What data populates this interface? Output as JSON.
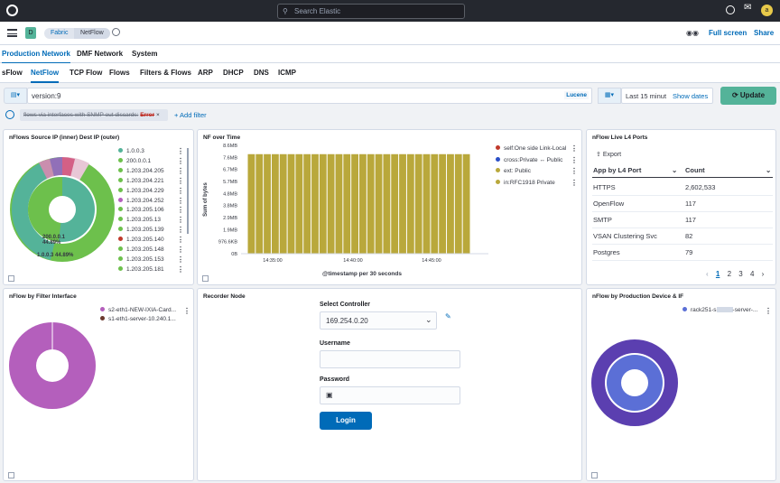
{
  "header": {
    "search_placeholder": "Search Elastic",
    "avatar_letter": "a"
  },
  "nav": {
    "space_letter": "D",
    "breadcrumbs": [
      "Fabric",
      "NetFlow"
    ],
    "full_screen": "Full screen",
    "share": "Share"
  },
  "tabs_primary": [
    "Production Network",
    "DMF Network",
    "System"
  ],
  "tabs_secondary": [
    "sFlow",
    "NetFlow",
    "TCP Flow",
    "Flows",
    "Filters & Flows",
    "ARP",
    "DHCP",
    "DNS",
    "ICMP"
  ],
  "query": {
    "value": "version:9",
    "language": "Lucene",
    "time": "Last 15 minut",
    "show_dates": "Show dates",
    "update": "Update"
  },
  "filter_pill": {
    "text": "flows via interfaces with SNMP out discards:",
    "error": "Error",
    "add": "+ Add filter"
  },
  "panel1": {
    "title": "nFlows Source IP (inner) Dest IP (outer)",
    "legend": [
      "1.0.0.3",
      "200.0.0.1",
      "1.203.204.205",
      "1.203.204.221",
      "1.203.204.229",
      "1.203.204.252",
      "1.203.205.106",
      "1.203.205.13",
      "1.203.205.139",
      "1.203.205.140",
      "1.203.205.148",
      "1.203.205.153",
      "1.203.205.181"
    ],
    "legend_colors": [
      "#54b399",
      "#6dc04c",
      "#6dc04c",
      "#6dc04c",
      "#6dc04c",
      "#b45fbc",
      "#6dc04c",
      "#6dc04c",
      "#6dc04c",
      "#c0392b",
      "#6dc04c",
      "#6dc04c",
      "#6dc04c"
    ],
    "label_inner1": "200.0.0.1",
    "label_inner1_pct": "44.89%",
    "label_inner2": "1.0.0.3",
    "label_inner2_pct": "44.89%"
  },
  "panel2": {
    "title": "NF over Time",
    "chart_data": {
      "type": "bar",
      "title": "NF over Time",
      "ylabel": "Sum of bytes",
      "xlabel": "@timestamp per 30 seconds",
      "yticks": [
        "8.6MB",
        "7.6MB",
        "6.7MB",
        "5.7MB",
        "4.8MB",
        "3.8MB",
        "2.9MB",
        "1.9MB",
        "976.6KB",
        "0B"
      ],
      "xticks": [
        "14:35:00",
        "14:40:00",
        "14:45:00"
      ],
      "series": [
        {
          "name": "ext: Public",
          "color": "#b9a83b",
          "values": [
            7.9,
            7.9,
            7.9,
            7.9,
            7.9,
            7.9,
            7.9,
            7.9,
            7.9,
            7.9,
            7.9,
            7.9,
            7.9,
            7.9,
            7.9,
            7.9,
            7.9,
            7.9,
            7.9,
            7.9,
            7.9,
            7.9,
            7.9,
            7.9,
            7.9,
            7.9,
            7.9,
            7.9
          ]
        }
      ],
      "unit": "MB",
      "ylim": [
        0,
        8.6
      ]
    },
    "legend": [
      "self:One side Link-Local",
      "cross:Private ↔ Public",
      "ext: Public",
      "in:RFC1918 Private"
    ],
    "legend_colors": [
      "#c0392b",
      "#2a4fc7",
      "#b9a83b",
      "#b9a83b"
    ]
  },
  "panel3": {
    "title": "nFlow Live L4 Ports",
    "export": "Export",
    "col1": "App by L4 Port",
    "col2": "Count",
    "rows": [
      {
        "app": "HTTPS",
        "count": "2,602,533"
      },
      {
        "app": "OpenFlow",
        "count": "117"
      },
      {
        "app": "SMTP",
        "count": "117"
      },
      {
        "app": "VSAN Clustering Svc",
        "count": "82"
      },
      {
        "app": "Postgres",
        "count": "79"
      }
    ],
    "pages": [
      "1",
      "2",
      "3",
      "4"
    ]
  },
  "panel4": {
    "title": "nFlow by Filter Interface",
    "legend": [
      "s2-eth1-NEW-IXIA-Card...",
      "s1-eth1-server-10.240.1..."
    ],
    "legend_colors": [
      "#b45fbc",
      "#6b3a2e"
    ]
  },
  "panel5": {
    "title": "Recorder Node",
    "controller_label": "Select Controller",
    "controller_value": "169.254.0.20",
    "username_label": "Username",
    "password_label": "Password",
    "login": "Login"
  },
  "panel6": {
    "title": "nFlow by Production Device & IF",
    "legend": [
      "rack251-s",
      "-server-..."
    ],
    "legend_color": "#5b6fd6"
  }
}
